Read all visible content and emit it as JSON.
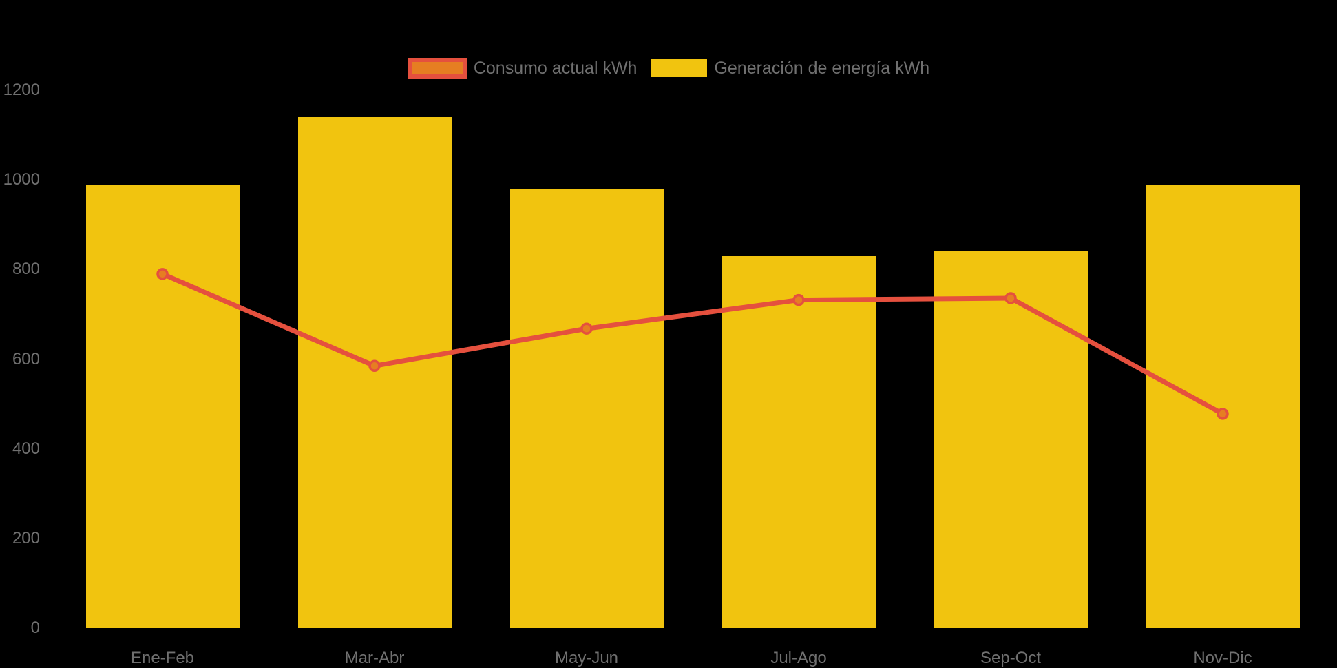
{
  "background": "#000000",
  "text_color": "#707070",
  "legend": {
    "position": "top",
    "items": [
      {
        "label": "Consumo actual kWh",
        "swatch_fill": "#e67e22",
        "swatch_border": "#e5503e"
      },
      {
        "label": "Generación de energía kWh",
        "swatch_fill": "#f1c40f",
        "swatch_border": "#f1c40f"
      }
    ]
  },
  "chart_data": {
    "type": "bar",
    "title": "",
    "xlabel": "",
    "ylabel": "",
    "categories": [
      "Ene-Feb",
      "Mar-Abr",
      "May-Jun",
      "Jul-Ago",
      "Sep-Oct",
      "Nov-Dic"
    ],
    "series": [
      {
        "name": "Consumo actual kWh",
        "type": "line",
        "color": "#e5503e",
        "point_fill": "#e67e22",
        "values": [
          790,
          585,
          668,
          732,
          736,
          478
        ]
      },
      {
        "name": "Generación de energía kWh",
        "type": "bar",
        "color": "#f1c40f",
        "values": [
          990,
          1140,
          980,
          830,
          840,
          990
        ]
      }
    ],
    "ylim": [
      0,
      1200
    ],
    "yticks": [
      0,
      200,
      400,
      600,
      800,
      1000,
      1200
    ],
    "grid": false,
    "legend_position": "top-center",
    "background": "#000000"
  }
}
